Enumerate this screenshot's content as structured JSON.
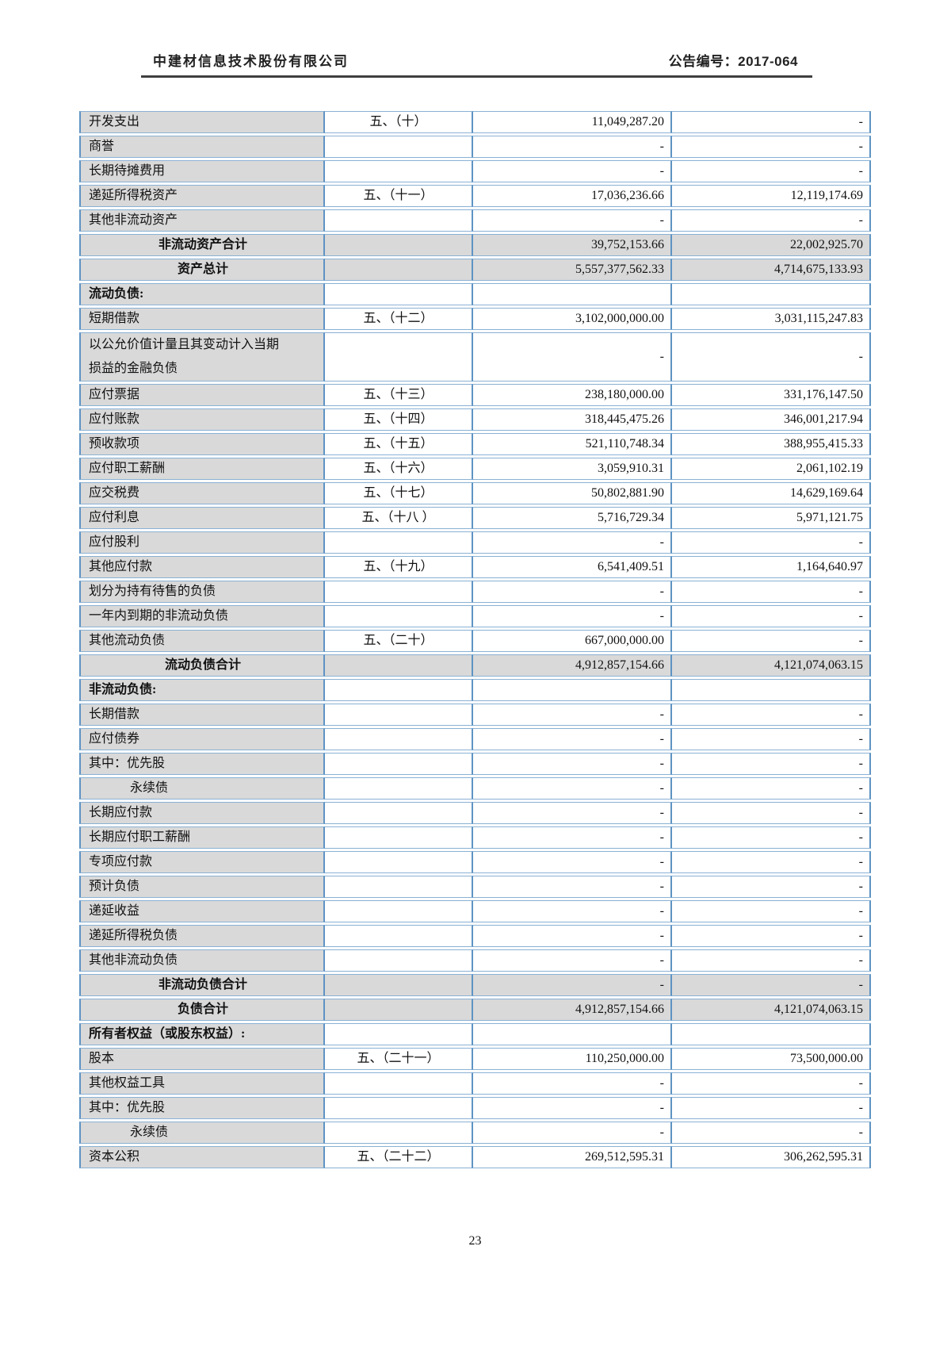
{
  "header": {
    "company_name": "中建材信息技术股份有限公司",
    "notice_label": "公告编号：",
    "notice_number": "2017-064"
  },
  "footer": {
    "page_number": "23"
  },
  "colors": {
    "column_border_blue": "#5e93c3",
    "row_line_blue": "#8ab1d4",
    "cell_gray": "#d9d9d9",
    "header_rule": "#3f3f3f"
  },
  "balance_sheet_table": {
    "columns": [
      "item",
      "note",
      "amount_current",
      "amount_prior"
    ],
    "rows": [
      {
        "label": "开发支出",
        "note": "五、（十）",
        "current": "11,049,287.20",
        "prior": "-"
      },
      {
        "label": "商誉",
        "current": "-",
        "prior": "-"
      },
      {
        "label": "长期待摊费用",
        "current": "-",
        "prior": "-"
      },
      {
        "label": "递延所得税资产",
        "note": "五、（十一）",
        "current": "17,036,236.66",
        "prior": "12,119,174.69"
      },
      {
        "label": "其他非流动资产",
        "current": "-",
        "prior": "-"
      },
      {
        "label": "非流动资产合计",
        "style": "total",
        "current": "39,752,153.66",
        "prior": "22,002,925.70"
      },
      {
        "label": "资产总计",
        "style": "total",
        "current": "5,557,377,562.33",
        "prior": "4,714,675,133.93"
      },
      {
        "label": "流动负债:",
        "style": "section"
      },
      {
        "label": "短期借款",
        "note": "五、（十二）",
        "current": "3,102,000,000.00",
        "prior": "3,031,115,247.83"
      },
      {
        "label": "以公允价值计量且其变动计入当期\n损益的金融负债",
        "tall": true,
        "current": "-",
        "prior": "-"
      },
      {
        "label": "应付票据",
        "note": "五、（十三）",
        "current": "238,180,000.00",
        "prior": "331,176,147.50"
      },
      {
        "label": "应付账款",
        "note": "五、（十四）",
        "current": "318,445,475.26",
        "prior": "346,001,217.94"
      },
      {
        "label": "预收款项",
        "note": "五、（十五）",
        "current": "521,110,748.34",
        "prior": "388,955,415.33"
      },
      {
        "label": "应付职工薪酬",
        "note": "五、（十六）",
        "current": "3,059,910.31",
        "prior": "2,061,102.19"
      },
      {
        "label": "应交税费",
        "note": "五、（十七）",
        "current": "50,802,881.90",
        "prior": "14,629,169.64"
      },
      {
        "label": "应付利息",
        "note": "五、（十八 ）",
        "current": "5,716,729.34",
        "prior": "5,971,121.75"
      },
      {
        "label": "应付股利",
        "current": "-",
        "prior": "-"
      },
      {
        "label": "其他应付款",
        "note": "五、（十九）",
        "current": "6,541,409.51",
        "prior": "1,164,640.97"
      },
      {
        "label": "划分为持有待售的负债",
        "current": "-",
        "prior": "-"
      },
      {
        "label": "一年内到期的非流动负债",
        "current": "-",
        "prior": "-"
      },
      {
        "label": "其他流动负债",
        "note": "五、（二十）",
        "current": "667,000,000.00",
        "prior": "-"
      },
      {
        "label": "流动负债合计",
        "style": "total",
        "current": "4,912,857,154.66",
        "prior": "4,121,074,063.15"
      },
      {
        "label": "非流动负债:",
        "style": "section"
      },
      {
        "label": "长期借款",
        "current": "-",
        "prior": "-"
      },
      {
        "label": "应付债券",
        "current": "-",
        "prior": "-"
      },
      {
        "label": "其中：优先股",
        "current": "-",
        "prior": "-"
      },
      {
        "label": "永续债",
        "indent": true,
        "current": "-",
        "prior": "-"
      },
      {
        "label": "长期应付款",
        "current": "-",
        "prior": "-"
      },
      {
        "label": "长期应付职工薪酬",
        "current": "-",
        "prior": "-"
      },
      {
        "label": "专项应付款",
        "current": "-",
        "prior": "-"
      },
      {
        "label": "预计负债",
        "current": "-",
        "prior": "-"
      },
      {
        "label": "递延收益",
        "current": "-",
        "prior": "-"
      },
      {
        "label": "递延所得税负债",
        "current": "-",
        "prior": "-"
      },
      {
        "label": "其他非流动负债",
        "current": "-",
        "prior": "-"
      },
      {
        "label": "非流动负债合计",
        "style": "total",
        "current": "-",
        "prior": "-"
      },
      {
        "label": "负债合计",
        "style": "total",
        "current": "4,912,857,154.66",
        "prior": "4,121,074,063.15"
      },
      {
        "label": "所有者权益（或股东权益）:",
        "style": "section"
      },
      {
        "label": "股本",
        "note": "五、（二十一）",
        "current": "110,250,000.00",
        "prior": "73,500,000.00"
      },
      {
        "label": "其他权益工具",
        "current": "-",
        "prior": "-"
      },
      {
        "label": "其中：优先股",
        "current": "-",
        "prior": "-"
      },
      {
        "label": "永续债",
        "indent": true,
        "current": "-",
        "prior": "-"
      },
      {
        "label": "资本公积",
        "note": "五、（二十二）",
        "current": "269,512,595.31",
        "prior": "306,262,595.31"
      }
    ]
  }
}
